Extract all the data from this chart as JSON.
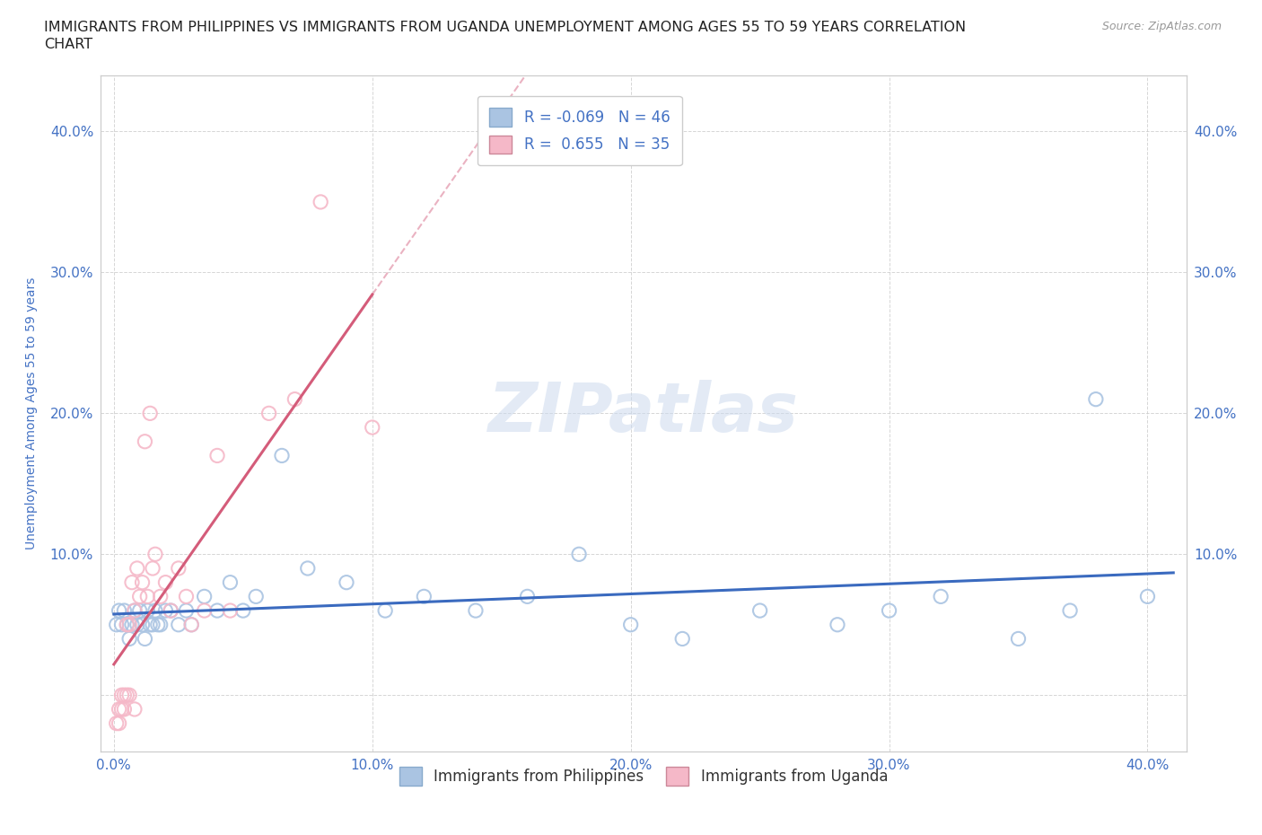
{
  "title_line1": "IMMIGRANTS FROM PHILIPPINES VS IMMIGRANTS FROM UGANDA UNEMPLOYMENT AMONG AGES 55 TO 59 YEARS CORRELATION",
  "title_line2": "CHART",
  "source_text": "Source: ZipAtlas.com",
  "ylabel": "Unemployment Among Ages 55 to 59 years",
  "watermark": "ZIPatlas",
  "philippines_color": "#aac4e2",
  "philippines_edge": "#aac4e2",
  "uganda_color": "#f5b8c8",
  "uganda_edge": "#f5b8c8",
  "philippines_line_color": "#3a6abf",
  "uganda_line_color": "#d45c7a",
  "uganda_dash_color": "#e8aabb",
  "philippines_R": -0.069,
  "philippines_N": 46,
  "uganda_R": 0.655,
  "uganda_N": 35,
  "ph_x": [
    0.001,
    0.002,
    0.003,
    0.004,
    0.005,
    0.006,
    0.007,
    0.008,
    0.009,
    0.01,
    0.011,
    0.012,
    0.013,
    0.014,
    0.015,
    0.016,
    0.017,
    0.018,
    0.02,
    0.022,
    0.025,
    0.028,
    0.03,
    0.035,
    0.04,
    0.045,
    0.05,
    0.055,
    0.065,
    0.075,
    0.09,
    0.105,
    0.12,
    0.14,
    0.16,
    0.18,
    0.2,
    0.22,
    0.25,
    0.28,
    0.3,
    0.32,
    0.35,
    0.37,
    0.38,
    0.4
  ],
  "ph_y": [
    0.05,
    0.06,
    0.05,
    0.06,
    0.05,
    0.04,
    0.05,
    0.06,
    0.05,
    0.06,
    0.05,
    0.04,
    0.06,
    0.05,
    0.05,
    0.06,
    0.05,
    0.05,
    0.06,
    0.06,
    0.05,
    0.06,
    0.05,
    0.07,
    0.06,
    0.08,
    0.06,
    0.07,
    0.17,
    0.09,
    0.08,
    0.06,
    0.07,
    0.06,
    0.07,
    0.1,
    0.05,
    0.04,
    0.06,
    0.05,
    0.06,
    0.07,
    0.04,
    0.06,
    0.21,
    0.07
  ],
  "ug_x": [
    0.001,
    0.002,
    0.002,
    0.003,
    0.003,
    0.004,
    0.004,
    0.005,
    0.005,
    0.006,
    0.006,
    0.007,
    0.008,
    0.008,
    0.009,
    0.01,
    0.011,
    0.012,
    0.013,
    0.014,
    0.015,
    0.016,
    0.018,
    0.02,
    0.022,
    0.025,
    0.028,
    0.03,
    0.035,
    0.04,
    0.045,
    0.06,
    0.07,
    0.08,
    0.1
  ],
  "ug_y": [
    -0.02,
    -0.02,
    -0.01,
    -0.01,
    0.0,
    0.0,
    -0.01,
    0.0,
    0.05,
    0.0,
    0.05,
    0.08,
    0.06,
    -0.01,
    0.09,
    0.07,
    0.08,
    0.18,
    0.07,
    0.2,
    0.09,
    0.1,
    0.07,
    0.08,
    0.06,
    0.09,
    0.07,
    0.05,
    0.06,
    0.17,
    0.06,
    0.2,
    0.21,
    0.35,
    0.19
  ],
  "xlim": [
    -0.005,
    0.415
  ],
  "ylim": [
    -0.04,
    0.44
  ],
  "xticks": [
    0.0,
    0.1,
    0.2,
    0.3,
    0.4
  ],
  "yticks": [
    0.0,
    0.1,
    0.2,
    0.3,
    0.4
  ],
  "background_color": "#ffffff",
  "grid_color": "#cccccc",
  "tick_color": "#4472c4",
  "title_color": "#222222",
  "title_fontsize": 11.5,
  "legend_fontsize": 12,
  "axis_label_fontsize": 10,
  "scatter_size": 120
}
